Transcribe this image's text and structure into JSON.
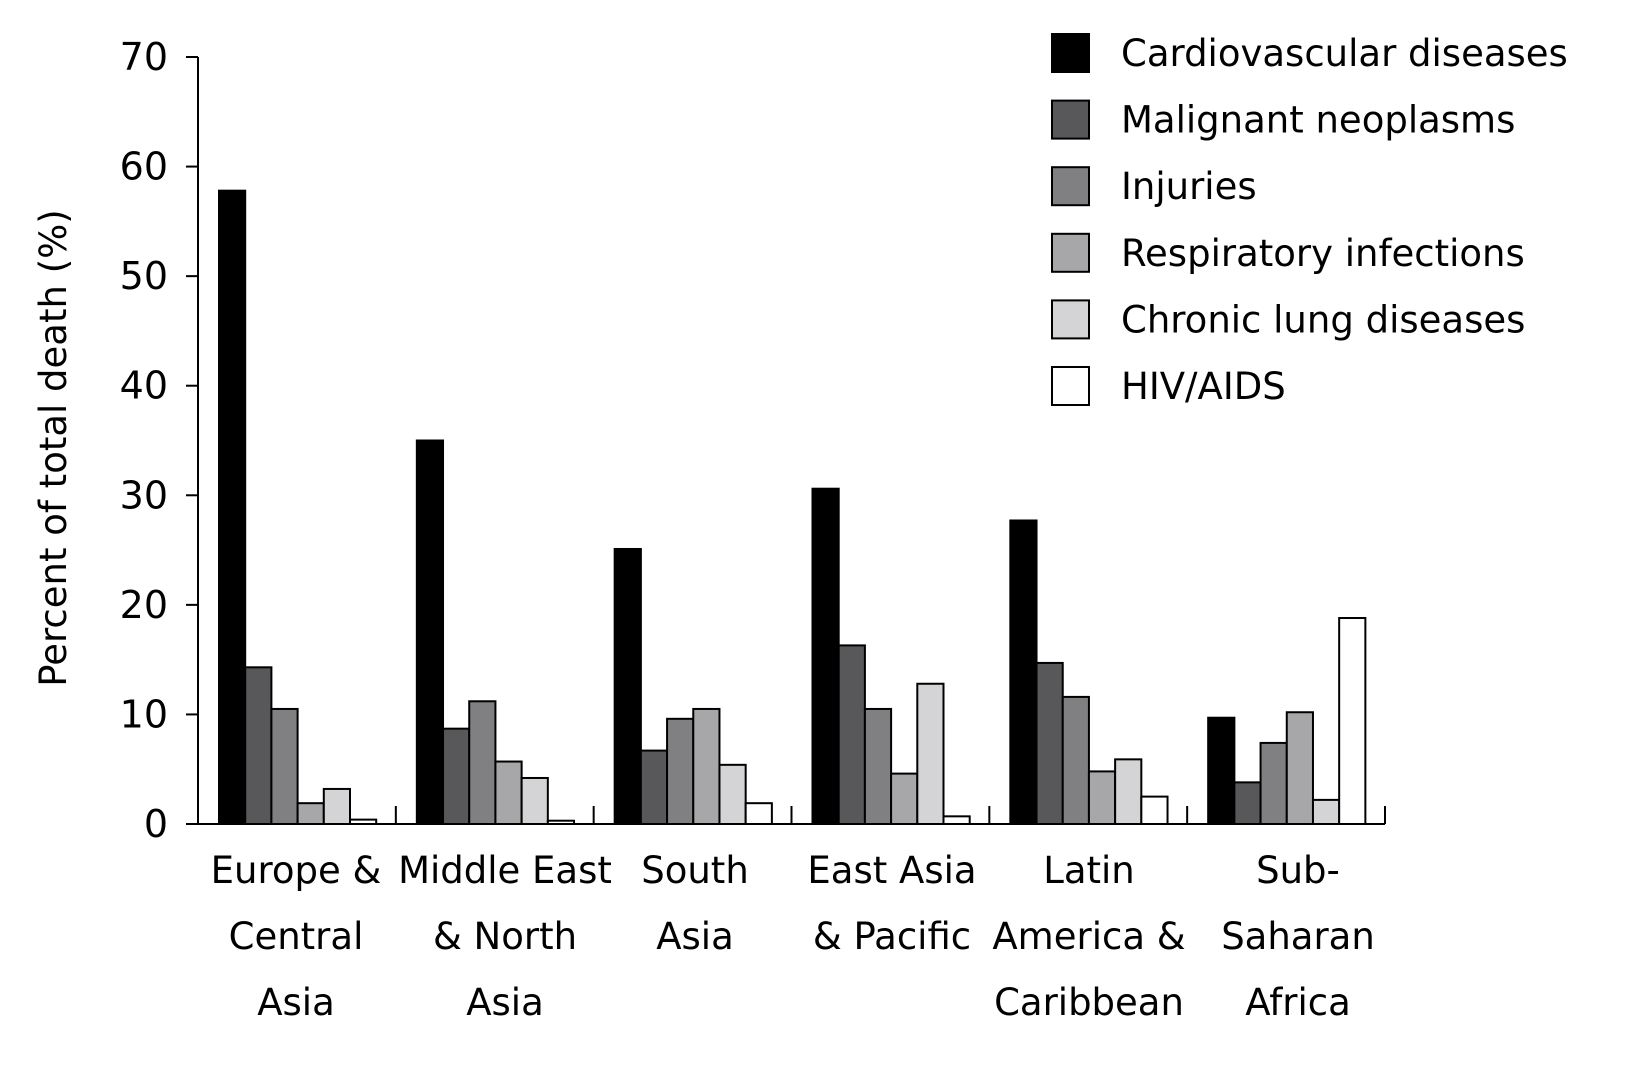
{
  "chart_data": {
    "type": "bar",
    "title": "",
    "xlabel": "",
    "ylabel": "Percent of total death (%)",
    "ylim": [
      0,
      70
    ],
    "yticks": [
      "0",
      "10",
      "20",
      "30",
      "40",
      "50",
      "60",
      "70"
    ],
    "categories": [
      [
        "Europe &",
        "Central",
        "Asia"
      ],
      [
        "Middle East",
        "& North",
        "Asia"
      ],
      [
        "South",
        "Asia"
      ],
      [
        "East Asia",
        "& Pacific"
      ],
      [
        "Latin",
        "America &",
        "Caribbean"
      ],
      [
        "Sub-",
        "Saharan",
        "Africa"
      ]
    ],
    "series": [
      {
        "name": "Cardiovascular diseases",
        "color": "#000000",
        "values": [
          57.8,
          35.0,
          25.1,
          30.6,
          27.7,
          9.7
        ]
      },
      {
        "name": "Malignant neoplasms",
        "color": "#58585a",
        "values": [
          14.3,
          8.7,
          6.7,
          16.3,
          14.7,
          3.8
        ]
      },
      {
        "name": "Injuries",
        "color": "#808082",
        "values": [
          10.5,
          11.2,
          9.6,
          10.5,
          11.6,
          7.4
        ]
      },
      {
        "name": "Respiratory infections",
        "color": "#a7a7a9",
        "values": [
          1.9,
          5.7,
          10.5,
          4.6,
          4.8,
          10.2
        ]
      },
      {
        "name": "Chronic lung diseases",
        "color": "#d4d4d6",
        "values": [
          3.2,
          4.2,
          5.4,
          12.8,
          5.9,
          2.2
        ]
      },
      {
        "name": "HIV/AIDS",
        "color": "#ffffff",
        "values": [
          0.4,
          0.3,
          1.9,
          0.7,
          2.5,
          18.8
        ]
      }
    ],
    "grid": false,
    "legend_position": "top-right"
  }
}
